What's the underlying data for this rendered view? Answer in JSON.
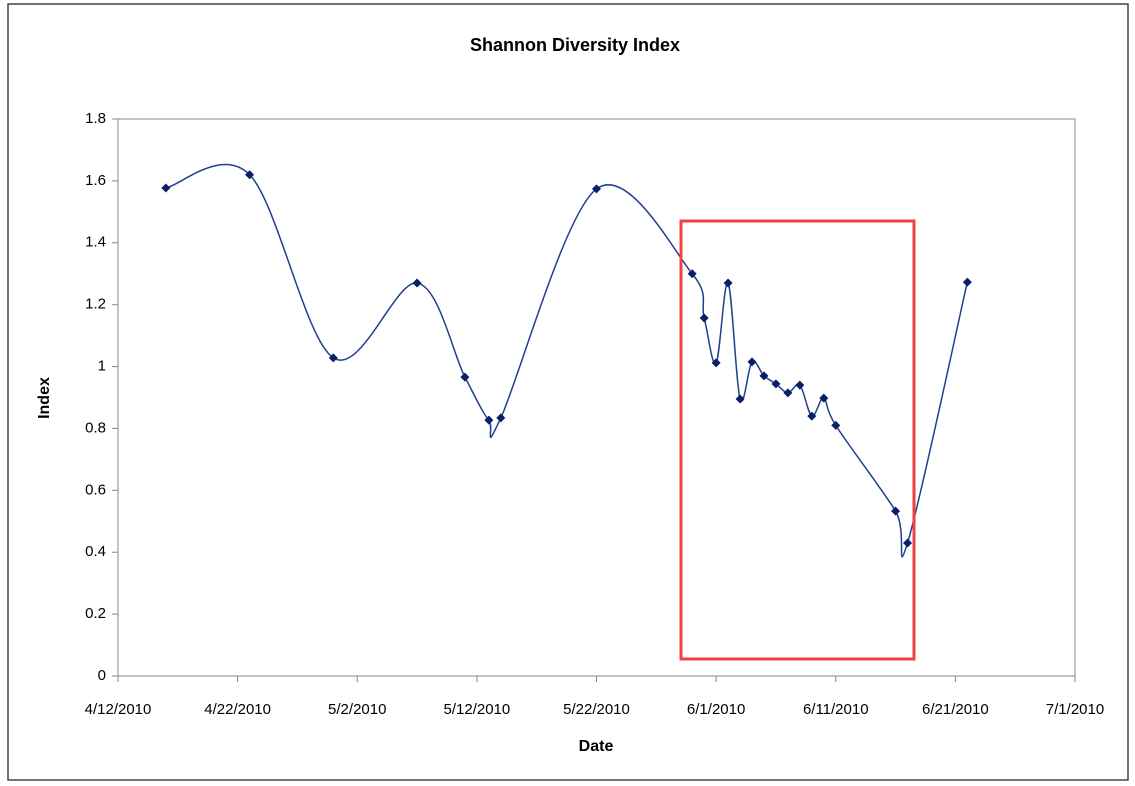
{
  "chart_data": {
    "type": "line",
    "title": "Shannon Diversity Index",
    "x_label": "Date",
    "y_label": "Index",
    "x": [
      "4/16/2010",
      "4/23/2010",
      "4/30/2010",
      "5/7/2010",
      "5/11/2010",
      "5/13/2010",
      "5/14/2010",
      "5/22/2010",
      "5/30/2010",
      "5/31/2010",
      "6/1/2010",
      "6/2/2010",
      "6/3/2010",
      "6/4/2010",
      "6/5/2010",
      "6/6/2010",
      "6/7/2010",
      "6/8/2010",
      "6/9/2010",
      "6/10/2010",
      "6/11/2010",
      "6/16/2010",
      "6/17/2010",
      "6/22/2010"
    ],
    "series": [
      {
        "name": "Index",
        "color": "#1f3f8f",
        "values": [
          1.577,
          1.62,
          1.028,
          1.27,
          0.966,
          0.827,
          0.834,
          1.574,
          1.3,
          1.157,
          1.012,
          1.27,
          0.895,
          1.015,
          0.97,
          0.944,
          0.915,
          0.94,
          0.84,
          0.898,
          0.81,
          0.533,
          0.43,
          1.273
        ]
      }
    ],
    "smooth": true,
    "xlim": [
      "4/12/2010",
      "7/1/2010"
    ],
    "xticks": [
      "4/12/2010",
      "4/22/2010",
      "5/2/2010",
      "5/12/2010",
      "5/22/2010",
      "6/1/2010",
      "6/11/2010",
      "6/21/2010",
      "7/1/2010"
    ],
    "ylim": [
      0,
      1.8
    ],
    "yticks": [
      0,
      0.2,
      0.4,
      0.6,
      0.8,
      1,
      1.2,
      1.4,
      1.6,
      1.8
    ],
    "grid": false
  }
}
